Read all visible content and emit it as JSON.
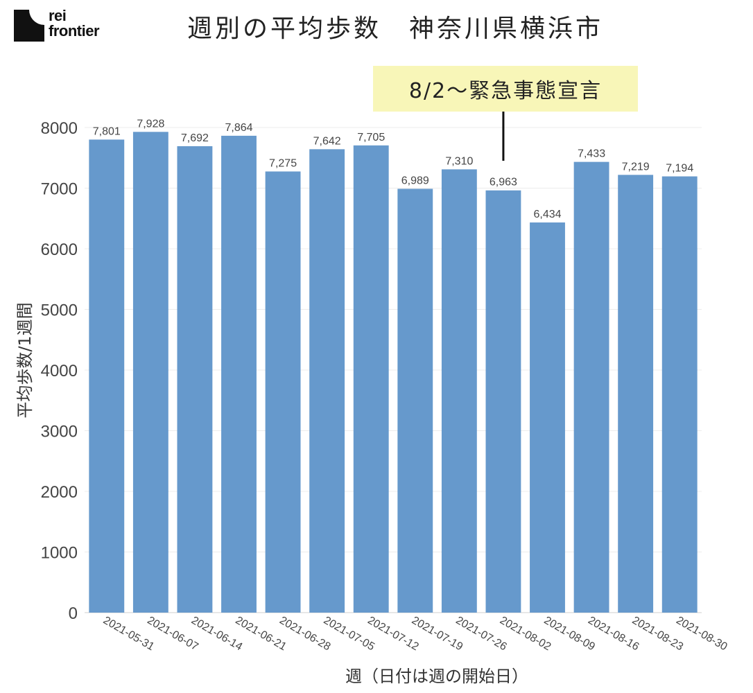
{
  "logo": {
    "line1": "rei",
    "line2": "frontier"
  },
  "chart_data": {
    "type": "bar",
    "title": "週別の平均歩数　神奈川県横浜市",
    "xlabel": "週（日付は週の開始日）",
    "ylabel": "平均歩数/1週間",
    "ylim": [
      0,
      8000
    ],
    "yticks": [
      "0",
      "1000",
      "2000",
      "3000",
      "4000",
      "5000",
      "6000",
      "7000",
      "8000"
    ],
    "categories": [
      "2021-05-31",
      "2021-06-07",
      "2021-06-14",
      "2021-06-21",
      "2021-06-28",
      "2021-07-05",
      "2021-07-12",
      "2021-07-19",
      "2021-07-26",
      "2021-08-02",
      "2021-08-09",
      "2021-08-16",
      "2021-08-23",
      "2021-08-30"
    ],
    "values": [
      7801,
      7928,
      7692,
      7864,
      7275,
      7642,
      7705,
      6989,
      7310,
      6963,
      6434,
      7433,
      7219,
      7194
    ],
    "data_labels": [
      "7,801",
      "7,928",
      "7,692",
      "7,864",
      "7,275",
      "7,642",
      "7,705",
      "6,989",
      "7,310",
      "6,963",
      "6,434",
      "7,433",
      "7,219",
      "7,194"
    ],
    "bar_color": "#6699cc",
    "grid": true,
    "annotation": {
      "text": "8/2～緊急事態宣言",
      "category": "2021-08-02",
      "background": "#f8f6b8"
    }
  }
}
